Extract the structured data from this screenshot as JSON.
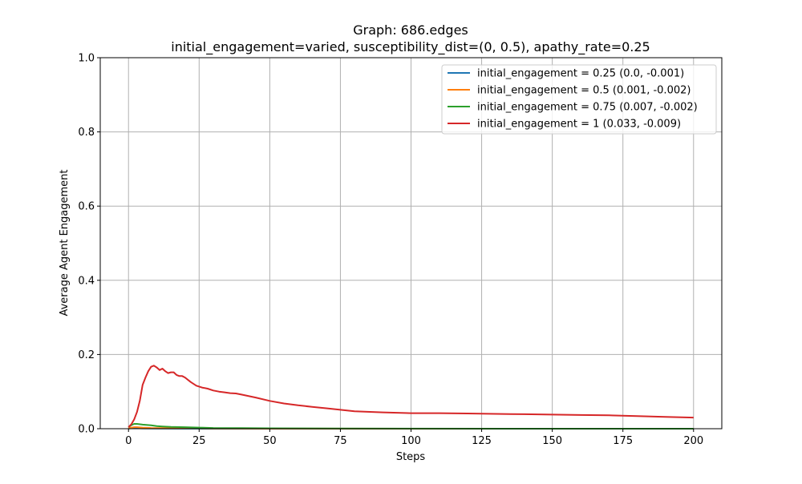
{
  "chart_data": {
    "type": "line",
    "title": "Graph: 686.edges",
    "subtitle": "initial_engagement=varied, susceptibility_dist=(0, 0.5), apathy_rate=0.25",
    "xlabel": "Steps",
    "ylabel": "Average Agent Engagement",
    "xlim": [
      -10,
      210
    ],
    "ylim": [
      0,
      1.0
    ],
    "xticks": [
      0,
      25,
      50,
      75,
      100,
      125,
      150,
      175,
      200
    ],
    "xtick_labels": [
      "0",
      "25",
      "50",
      "75",
      "100",
      "125",
      "150",
      "175",
      "200"
    ],
    "yticks": [
      0,
      0.2,
      0.4,
      0.6,
      0.8,
      1.0
    ],
    "ytick_labels": [
      "0.0",
      "0.2",
      "0.4",
      "0.6",
      "0.8",
      "1.0"
    ],
    "grid": true,
    "legend_position": "top-right",
    "series": [
      {
        "name": "initial_engagement = 0.25 (0.0, -0.001)",
        "color": "#1f77b4",
        "x": [
          0,
          1,
          2,
          3,
          5,
          10,
          20,
          50,
          100,
          150,
          200
        ],
        "y": [
          0.0003,
          0.0012,
          0.0015,
          0.0012,
          0.0008,
          0.0004,
          0.0002,
          0.0001,
          0.0,
          0.0,
          0.0
        ]
      },
      {
        "name": "initial_engagement = 0.5 (0.001, -0.002)",
        "color": "#ff7f0e",
        "x": [
          0,
          1,
          2,
          3,
          5,
          8,
          12,
          20,
          30,
          50,
          100,
          150,
          200
        ],
        "y": [
          0.001,
          0.003,
          0.004,
          0.004,
          0.003,
          0.002,
          0.0015,
          0.001,
          0.0006,
          0.0003,
          0.0001,
          0.0,
          0.0
        ]
      },
      {
        "name": "initial_engagement = 0.75 (0.007, -0.002)",
        "color": "#2ca02c",
        "x": [
          0,
          1,
          2,
          3,
          5,
          8,
          10,
          12,
          15,
          20,
          25,
          30,
          40,
          50,
          75,
          100,
          150,
          200
        ],
        "y": [
          0.004,
          0.01,
          0.013,
          0.013,
          0.011,
          0.009,
          0.007,
          0.006,
          0.005,
          0.004,
          0.003,
          0.002,
          0.0015,
          0.001,
          0.0006,
          0.0003,
          0.0001,
          0.0001
        ]
      },
      {
        "name": "initial_engagement = 1 (0.033, -0.009)",
        "color": "#d62728",
        "x": [
          0,
          1,
          2,
          3,
          4,
          5,
          6,
          7,
          8,
          9,
          10,
          11,
          12,
          13,
          14,
          15,
          16,
          17,
          18,
          19,
          20,
          22,
          24,
          26,
          28,
          30,
          32,
          34,
          36,
          38,
          40,
          45,
          50,
          55,
          60,
          65,
          70,
          75,
          80,
          90,
          100,
          110,
          120,
          130,
          140,
          150,
          160,
          170,
          180,
          190,
          200
        ],
        "y": [
          0.004,
          0.012,
          0.025,
          0.045,
          0.075,
          0.118,
          0.138,
          0.155,
          0.167,
          0.17,
          0.165,
          0.158,
          0.162,
          0.155,
          0.15,
          0.152,
          0.152,
          0.145,
          0.142,
          0.142,
          0.138,
          0.126,
          0.116,
          0.111,
          0.108,
          0.103,
          0.1,
          0.098,
          0.096,
          0.095,
          0.092,
          0.084,
          0.075,
          0.068,
          0.063,
          0.059,
          0.055,
          0.051,
          0.047,
          0.044,
          0.042,
          0.042,
          0.041,
          0.04,
          0.039,
          0.038,
          0.037,
          0.036,
          0.034,
          0.032,
          0.03
        ]
      }
    ]
  }
}
